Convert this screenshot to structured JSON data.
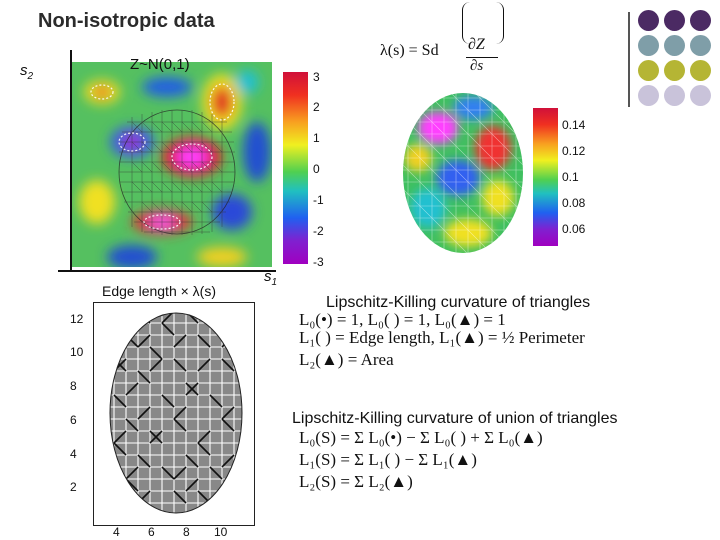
{
  "slide": {
    "title": "Non-isotropic data",
    "field_label": "Z~N(0,1)",
    "axis_s2": "s",
    "axis_s2_sub": "2",
    "axis_s1": "s",
    "axis_s1_sub": "1",
    "lambda_formula": "λ(s) = Sd",
    "partial_top": "∂Z",
    "partial_bottom": "∂s",
    "edge_caption": "Edge length × λ(s)",
    "colorbar_top_ticks": [
      "3",
      "2",
      "1",
      "0",
      "-1",
      "-2",
      "-3"
    ],
    "colorbar_right_ticks": [
      "0.14",
      "0.12",
      "0.1",
      "0.08",
      "0.06"
    ],
    "mesh_x_ticks": [
      "4",
      "6",
      "8",
      "10"
    ],
    "mesh_y_ticks": [
      "12",
      "10",
      "8",
      "6",
      "4",
      "2"
    ],
    "lk_title": "Lipschitz-Killing curvature of triangles",
    "lk_union_title": "Lipschitz-Killing curvature of union of triangles",
    "L0_line": "L₀(•) = 1,  L₀( ) = 1, L₀(▲) = 1",
    "L1_line": "L₁( ) = Edge length,  L₁(▲) = ½ Perimeter",
    "L2_line": "L₂(▲) = Area",
    "sum_L0": "L₀(S) = Σ L₀(•) − Σ L₀( ) + Σ L₀(▲)",
    "sum_L1": "L₁(S) = Σ L₁( ) − Σ L₁(▲)",
    "sum_L2": "L₂(S) = Σ L₂(▲)"
  },
  "palette": {
    "purple": "#4b2a63",
    "teal": "#7f9ea8",
    "olive": "#b5b534",
    "lavender": "#c9c3da"
  },
  "dot_grid": [
    [
      "purple",
      "purple",
      "purple"
    ],
    [
      "teal",
      "teal",
      "teal"
    ],
    [
      "olive",
      "olive",
      "olive"
    ],
    [
      "lavender",
      "lavender",
      "lavender"
    ]
  ]
}
